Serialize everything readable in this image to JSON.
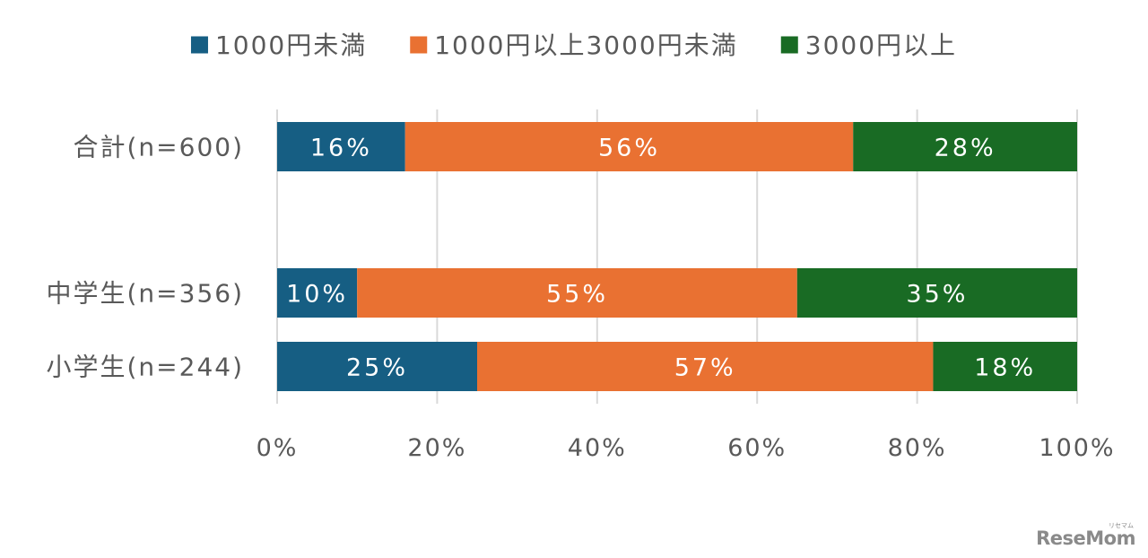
{
  "chart_data": {
    "type": "bar",
    "orientation": "horizontal",
    "stacked": "100%",
    "categories": [
      "合計(n=600)",
      "中学生(n=356)",
      "小学生(n=244)"
    ],
    "series": [
      {
        "name": "1000円未満",
        "color": "#165E83",
        "values": [
          16,
          10,
          25
        ],
        "labels": [
          "16%",
          "10%",
          "25%"
        ]
      },
      {
        "name": "1000円以上3000円未満",
        "color": "#E97132",
        "values": [
          56,
          55,
          57
        ],
        "labels": [
          "56%",
          "55%",
          "57%"
        ]
      },
      {
        "name": "3000円以上",
        "color": "#196B24",
        "values": [
          28,
          35,
          18
        ],
        "labels": [
          "28%",
          "35%",
          "18%"
        ]
      }
    ],
    "xlim": [
      0,
      100
    ],
    "xticks": [
      "0%",
      "20%",
      "40%",
      "60%",
      "80%",
      "100%"
    ],
    "grid": "vertical",
    "legend": "top",
    "title": "",
    "xlabel": "",
    "ylabel": ""
  },
  "watermark": {
    "text": "ReseMom",
    "subtext": "リセマム"
  }
}
